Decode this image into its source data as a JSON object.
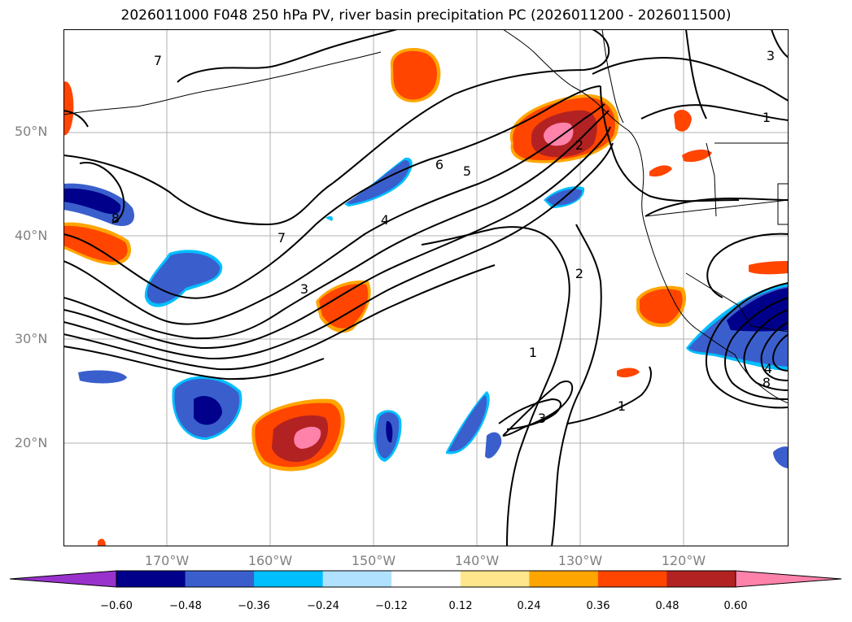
{
  "title": "2026011000 F048 250 hPa PV, river basin precipitation PC (2026011200 - 2026011500)",
  "lat_labels": [
    "50°N",
    "40°N",
    "30°N",
    "20°N"
  ],
  "lon_labels": [
    "170°W",
    "160°W",
    "150°W",
    "140°W",
    "130°W",
    "120°W"
  ],
  "contour_labels": [
    "7",
    "8",
    "6",
    "5",
    "4",
    "7",
    "3",
    "2",
    "2",
    "1",
    "3",
    "1",
    "3",
    "1",
    "4",
    "8"
  ],
  "colorbar": {
    "ticks": [
      "−0.60",
      "−0.48",
      "−0.36",
      "−0.24",
      "−0.12",
      "0.12",
      "0.24",
      "0.36",
      "0.48",
      "0.60"
    ],
    "colors": [
      "#9932cc",
      "#00008b",
      "#3a5fcd",
      "#00bfff",
      "#b0e2ff",
      "#ffffff",
      "#ffe68c",
      "#ffa500",
      "#ff4500",
      "#b22222",
      "#ff82ab"
    ]
  }
}
